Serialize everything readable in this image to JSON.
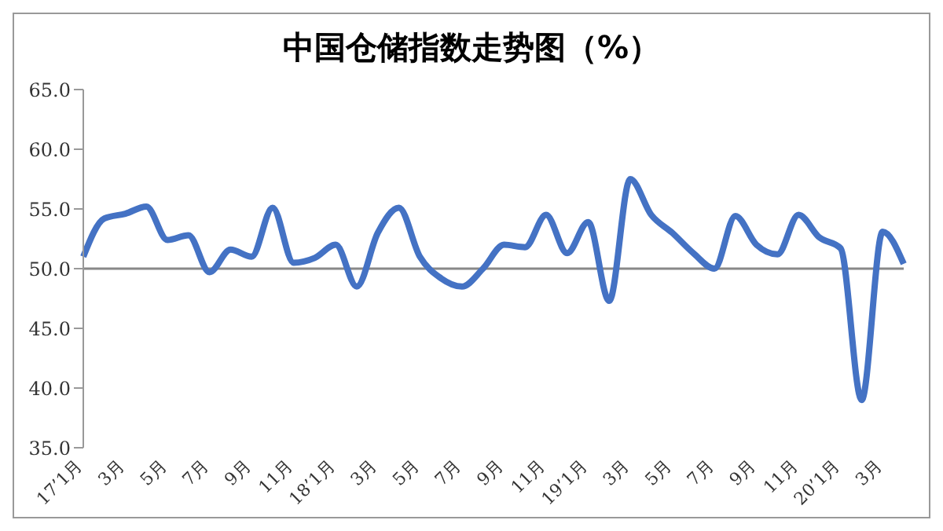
{
  "chart_data": {
    "type": "line",
    "title": "中国仓储指数走势图（%）",
    "categories": [
      "17’1月",
      null,
      "3月",
      null,
      "5月",
      null,
      "7月",
      null,
      "9月",
      null,
      "11月",
      null,
      "18’1月",
      null,
      "3月",
      null,
      "5月",
      null,
      "7月",
      null,
      "9月",
      null,
      "11月",
      null,
      "19’1月",
      null,
      "3月",
      null,
      "5月",
      null,
      "7月",
      null,
      "9月",
      null,
      "11月",
      null,
      "20’1月",
      null,
      "3月",
      null
    ],
    "series": [
      {
        "color": "#4472c4",
        "values": [
          51.0,
          54.2,
          54.6,
          55.2,
          52.4,
          52.8,
          49.7,
          51.6,
          51.0,
          55.1,
          50.5,
          50.9,
          52.0,
          48.5,
          53.0,
          55.1,
          51.0,
          49.2,
          48.5,
          50.0,
          52.0,
          51.8,
          54.5,
          51.3,
          53.9,
          47.3,
          57.5,
          54.5,
          53.0,
          51.3,
          50.0,
          54.4,
          52.0,
          51.2,
          54.5,
          52.6,
          51.7,
          39.0,
          53.1,
          50.4
        ]
      }
    ],
    "ylim": [
      35,
      65
    ],
    "yticks": [
      {
        "value": 35,
        "label": "35.0"
      },
      {
        "value": 40,
        "label": "40.0"
      },
      {
        "value": 45,
        "label": "45.0"
      },
      {
        "value": 50,
        "label": "50.0"
      },
      {
        "value": 55,
        "label": "55.0"
      },
      {
        "value": 60,
        "label": "60.0"
      },
      {
        "value": 65,
        "label": "65.0"
      }
    ],
    "ref_lines": [
      {
        "axis": "y",
        "value": 50,
        "color": "#888888"
      }
    ],
    "grid": false,
    "legend": false,
    "marker": "none",
    "line_style": "solid"
  }
}
